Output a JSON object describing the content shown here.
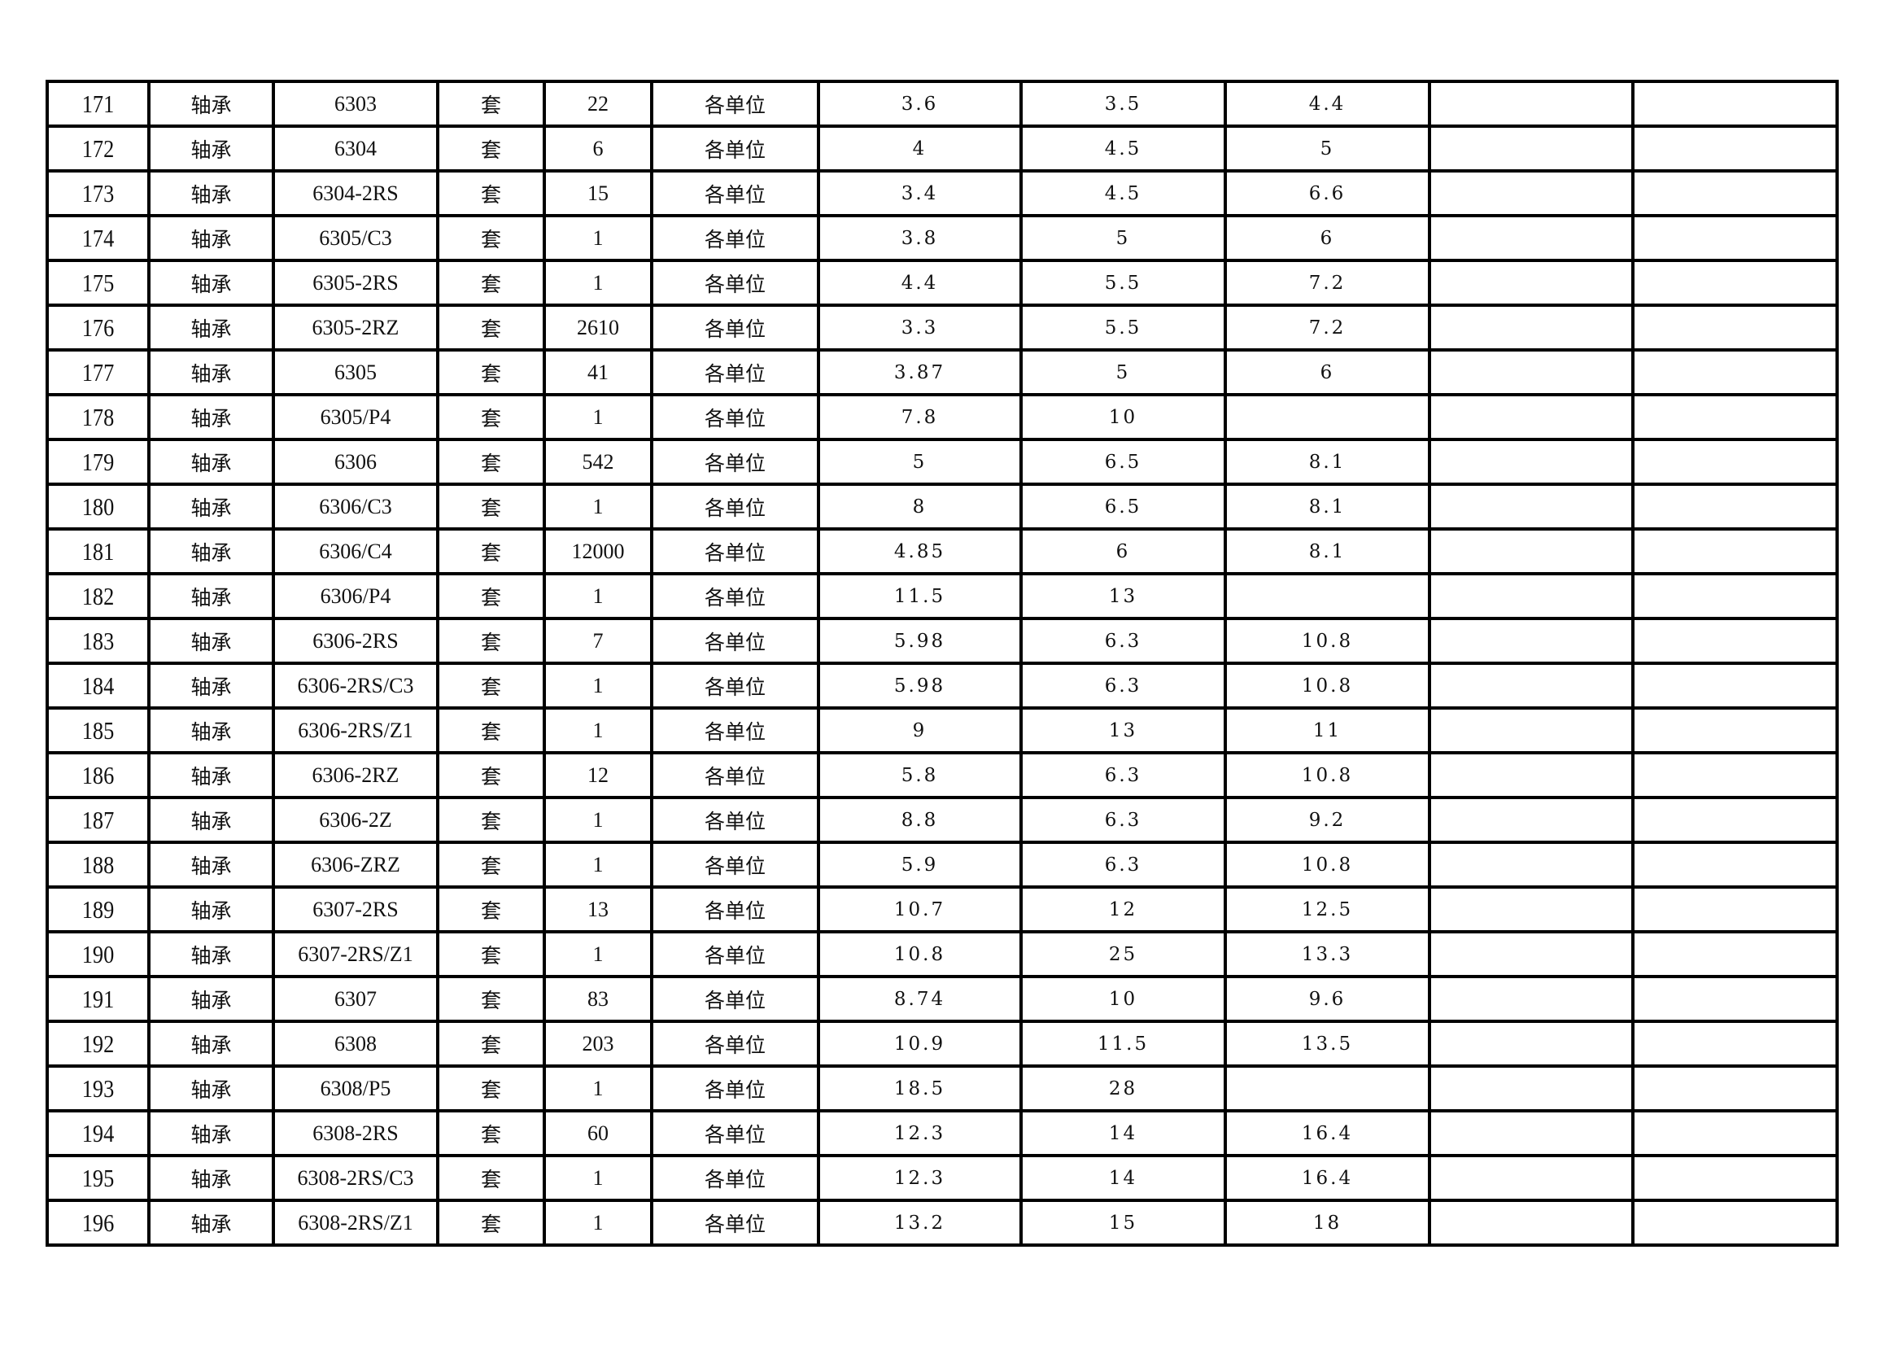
{
  "table": {
    "rows": [
      [
        "171",
        "轴承",
        "6303",
        "套",
        "22",
        "各单位",
        "3.6",
        "3.5",
        "4.4",
        "",
        ""
      ],
      [
        "172",
        "轴承",
        "6304",
        "套",
        "6",
        "各单位",
        "4",
        "4.5",
        "5",
        "",
        ""
      ],
      [
        "173",
        "轴承",
        "6304-2RS",
        "套",
        "15",
        "各单位",
        "3.4",
        "4.5",
        "6.6",
        "",
        ""
      ],
      [
        "174",
        "轴承",
        "6305/C3",
        "套",
        "1",
        "各单位",
        "3.8",
        "5",
        "6",
        "",
        ""
      ],
      [
        "175",
        "轴承",
        "6305-2RS",
        "套",
        "1",
        "各单位",
        "4.4",
        "5.5",
        "7.2",
        "",
        ""
      ],
      [
        "176",
        "轴承",
        "6305-2RZ",
        "套",
        "2610",
        "各单位",
        "3.3",
        "5.5",
        "7.2",
        "",
        ""
      ],
      [
        "177",
        "轴承",
        "6305",
        "套",
        "41",
        "各单位",
        "3.87",
        "5",
        "6",
        "",
        ""
      ],
      [
        "178",
        "轴承",
        "6305/P4",
        "套",
        "1",
        "各单位",
        "7.8",
        "10",
        "",
        "",
        ""
      ],
      [
        "179",
        "轴承",
        "6306",
        "套",
        "542",
        "各单位",
        "5",
        "6.5",
        "8.1",
        "",
        ""
      ],
      [
        "180",
        "轴承",
        "6306/C3",
        "套",
        "1",
        "各单位",
        "8",
        "6.5",
        "8.1",
        "",
        ""
      ],
      [
        "181",
        "轴承",
        "6306/C4",
        "套",
        "12000",
        "各单位",
        "4.85",
        "6",
        "8.1",
        "",
        ""
      ],
      [
        "182",
        "轴承",
        "6306/P4",
        "套",
        "1",
        "各单位",
        "11.5",
        "13",
        "",
        "",
        ""
      ],
      [
        "183",
        "轴承",
        "6306-2RS",
        "套",
        "7",
        "各单位",
        "5.98",
        "6.3",
        "10.8",
        "",
        ""
      ],
      [
        "184",
        "轴承",
        "6306-2RS/C3",
        "套",
        "1",
        "各单位",
        "5.98",
        "6.3",
        "10.8",
        "",
        ""
      ],
      [
        "185",
        "轴承",
        "6306-2RS/Z1",
        "套",
        "1",
        "各单位",
        "9",
        "13",
        "11",
        "",
        ""
      ],
      [
        "186",
        "轴承",
        "6306-2RZ",
        "套",
        "12",
        "各单位",
        "5.8",
        "6.3",
        "10.8",
        "",
        ""
      ],
      [
        "187",
        "轴承",
        "6306-2Z",
        "套",
        "1",
        "各单位",
        "8.8",
        "6.3",
        "9.2",
        "",
        ""
      ],
      [
        "188",
        "轴承",
        "6306-ZRZ",
        "套",
        "1",
        "各单位",
        "5.9",
        "6.3",
        "10.8",
        "",
        ""
      ],
      [
        "189",
        "轴承",
        "6307-2RS",
        "套",
        "13",
        "各单位",
        "10.7",
        "12",
        "12.5",
        "",
        ""
      ],
      [
        "190",
        "轴承",
        "6307-2RS/Z1",
        "套",
        "1",
        "各单位",
        "10.8",
        "25",
        "13.3",
        "",
        ""
      ],
      [
        "191",
        "轴承",
        "6307",
        "套",
        "83",
        "各单位",
        "8.74",
        "10",
        "9.6",
        "",
        ""
      ],
      [
        "192",
        "轴承",
        "6308",
        "套",
        "203",
        "各单位",
        "10.9",
        "11.5",
        "13.5",
        "",
        ""
      ],
      [
        "193",
        "轴承",
        "6308/P5",
        "套",
        "1",
        "各单位",
        "18.5",
        "28",
        "",
        "",
        ""
      ],
      [
        "194",
        "轴承",
        "6308-2RS",
        "套",
        "60",
        "各单位",
        "12.3",
        "14",
        "16.4",
        "",
        ""
      ],
      [
        "195",
        "轴承",
        "6308-2RS/C3",
        "套",
        "1",
        "各单位",
        "12.3",
        "14",
        "16.4",
        "",
        ""
      ],
      [
        "196",
        "轴承",
        "6308-2RS/Z1",
        "套",
        "1",
        "各单位",
        "13.2",
        "15",
        "18",
        "",
        ""
      ]
    ]
  }
}
